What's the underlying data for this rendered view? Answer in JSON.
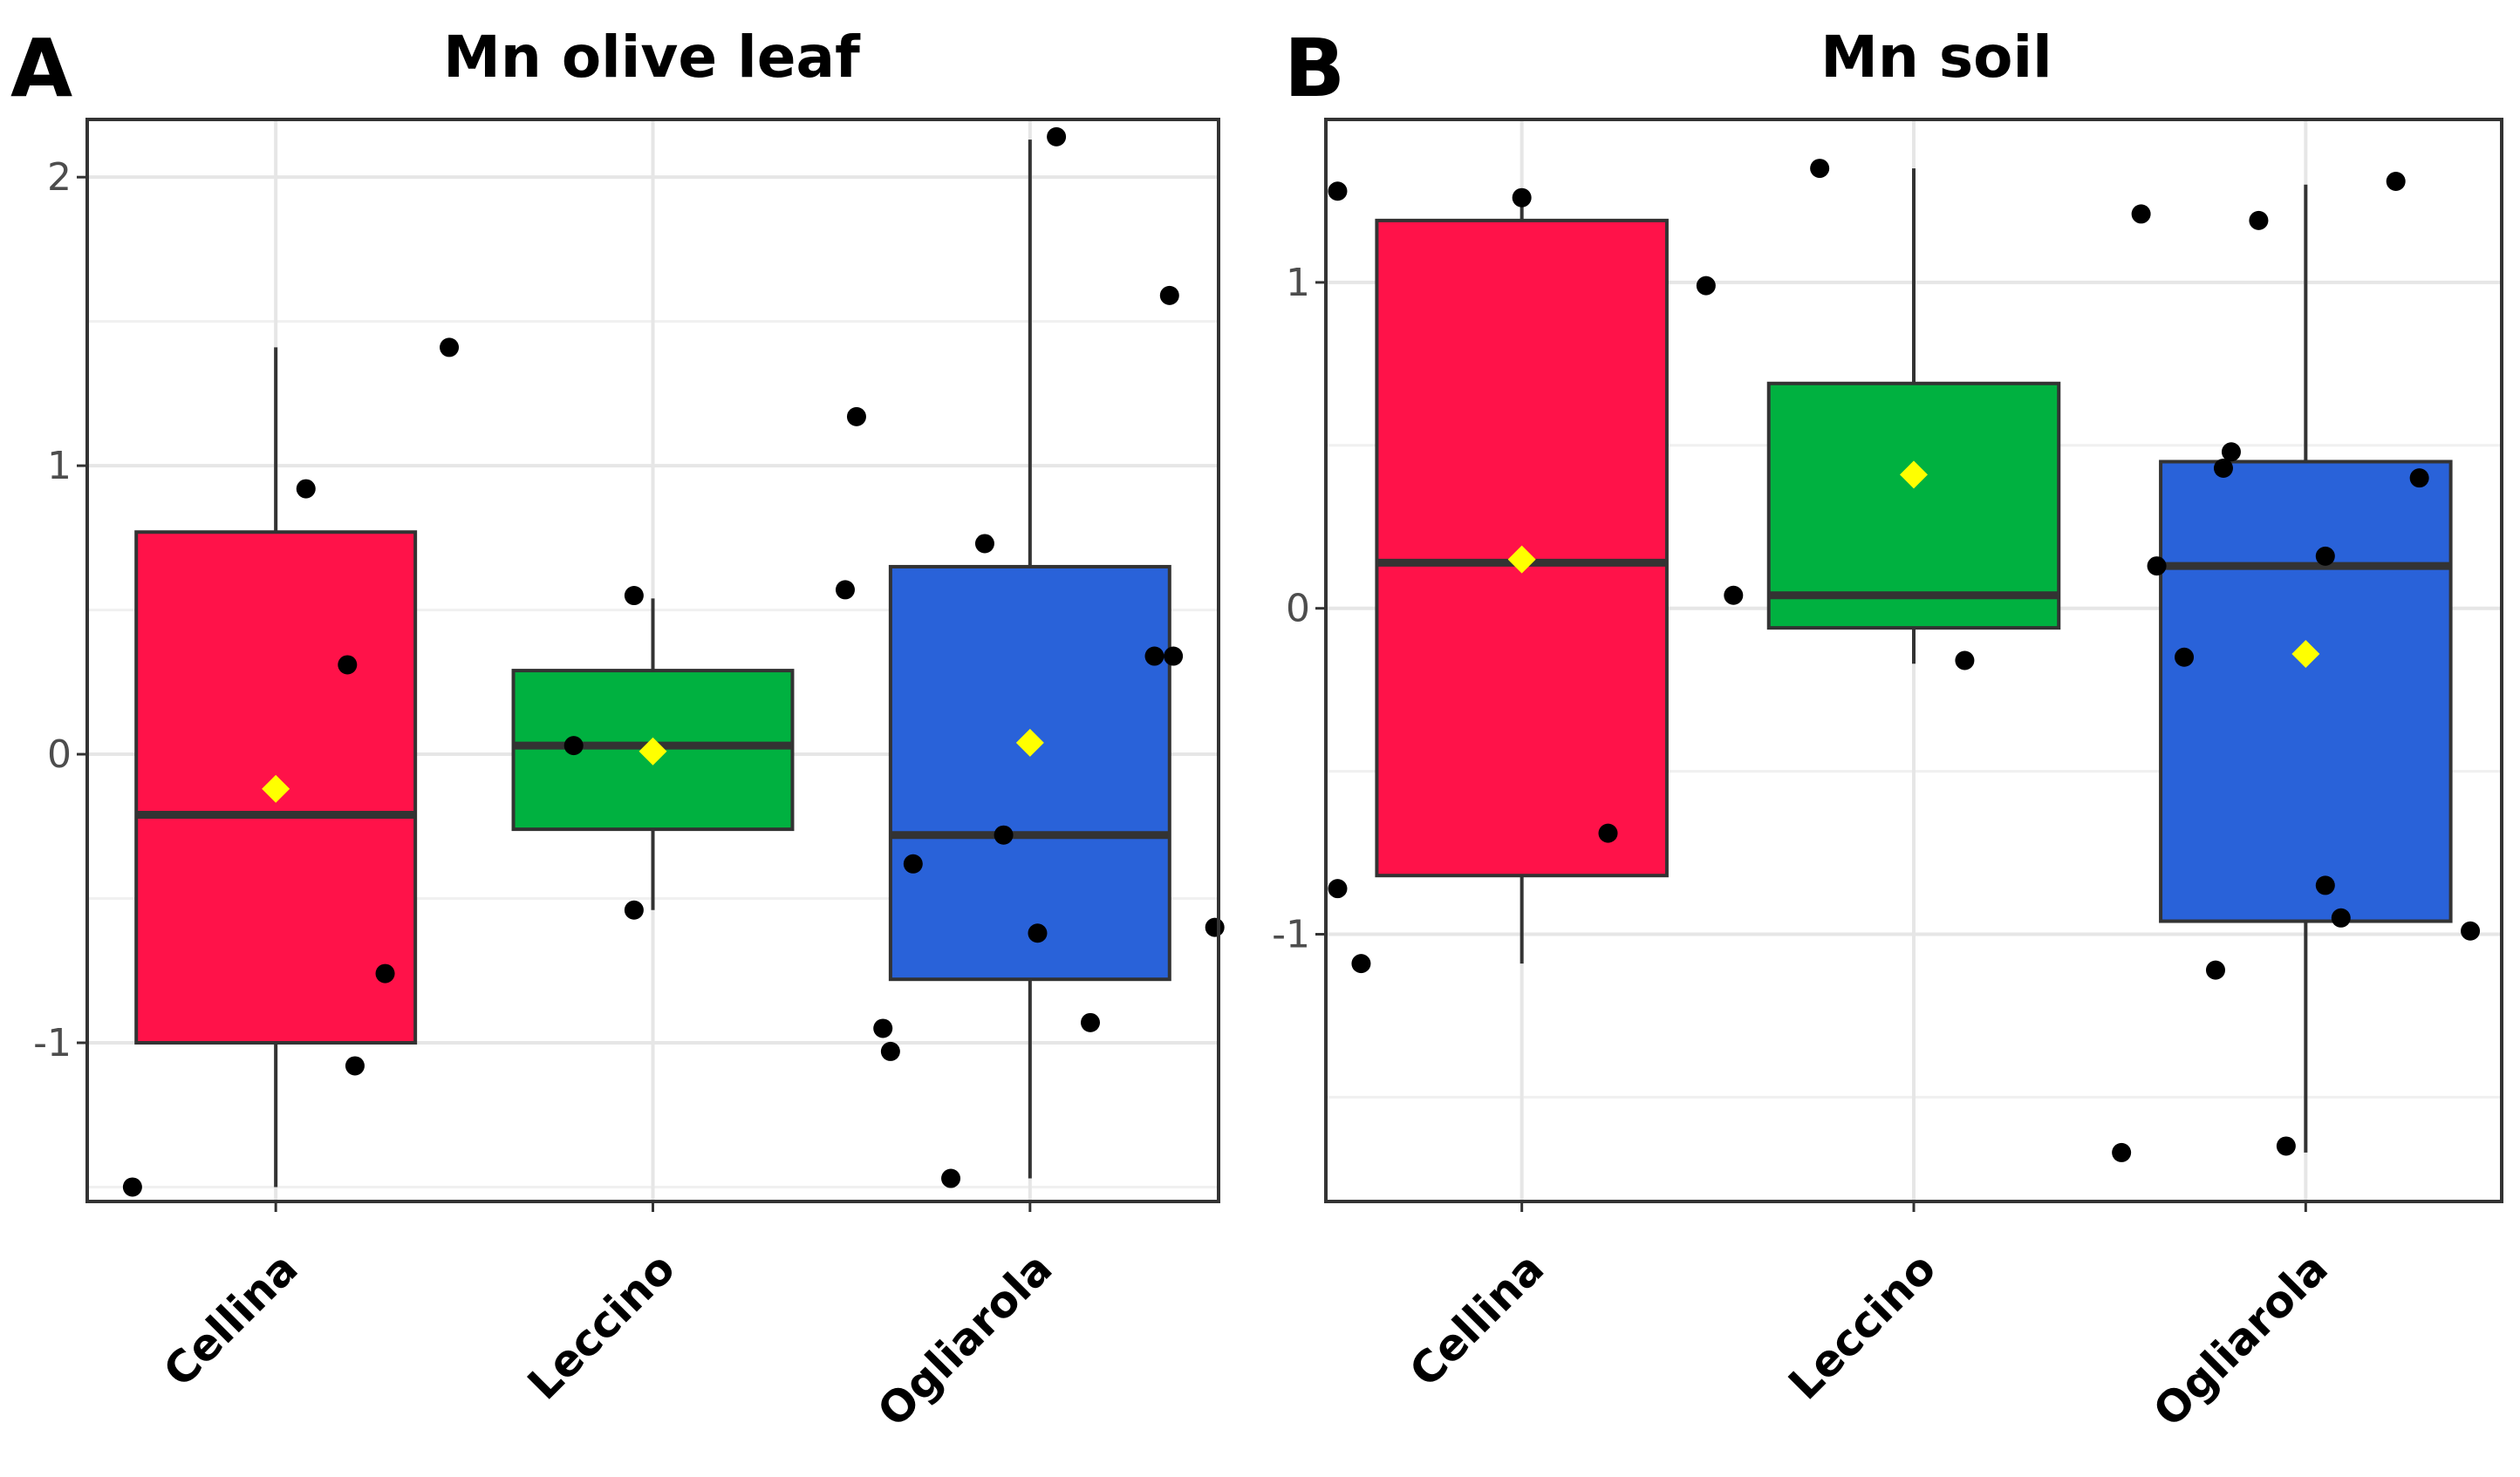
{
  "chart_data": [
    {
      "type": "box",
      "panel": "A",
      "title": "Mn olive leaf",
      "categories": [
        "Cellina",
        "Leccino",
        "Ogliarola"
      ],
      "ylim": [
        -1.55,
        2.2
      ],
      "yticks": [
        -1,
        0,
        1,
        2
      ],
      "ytick_labels": [
        "-1",
        "0",
        "1",
        "2"
      ],
      "grid": true,
      "groups": [
        {
          "name": "Cellina",
          "color": "#ff1249",
          "q1": -1.0,
          "median": -0.21,
          "q3": 0.77,
          "whisker_low": -1.5,
          "whisker_high": 1.41,
          "mean": -0.12,
          "points": [
            [
              -0.38,
              -1.5
            ],
            [
              0.08,
              0.92
            ],
            [
              0.19,
              0.31
            ],
            [
              0.29,
              -0.76
            ],
            [
              0.21,
              -1.08
            ],
            [
              0.46,
              1.41
            ]
          ]
        },
        {
          "name": "Leccino",
          "color": "#00b140",
          "q1": -0.26,
          "median": 0.03,
          "q3": 0.29,
          "whisker_low": -0.54,
          "whisker_high": 0.54,
          "mean": 0.01,
          "points": [
            [
              -0.21,
              0.03
            ],
            [
              -0.05,
              0.55
            ],
            [
              -0.05,
              -0.54
            ]
          ]
        },
        {
          "name": "Ogliarola",
          "color": "#2962d9",
          "q1": -0.78,
          "median": -0.28,
          "q3": 0.65,
          "whisker_low": -1.47,
          "whisker_high": 2.13,
          "mean": 0.04,
          "points": [
            [
              0.07,
              2.14
            ],
            [
              0.37,
              1.59
            ],
            [
              -0.46,
              1.17
            ],
            [
              -0.49,
              0.57
            ],
            [
              -0.12,
              0.73
            ],
            [
              0.33,
              0.34
            ],
            [
              0.38,
              0.34
            ],
            [
              -0.31,
              -0.38
            ],
            [
              -0.07,
              -0.28
            ],
            [
              0.02,
              -0.62
            ],
            [
              0.49,
              -0.6
            ],
            [
              -0.39,
              -0.95
            ],
            [
              -0.37,
              -1.03
            ],
            [
              0.16,
              -0.93
            ],
            [
              -0.21,
              -1.47
            ]
          ]
        }
      ]
    },
    {
      "type": "box",
      "panel": "B",
      "title": "Mn soil",
      "categories": [
        "Cellina",
        "Leccino",
        "Ogliarola"
      ],
      "ylim": [
        -1.82,
        1.5
      ],
      "yticks": [
        -1,
        0,
        1
      ],
      "ytick_labels": [
        "-1",
        "0",
        "1"
      ],
      "grid": true,
      "groups": [
        {
          "name": "Cellina",
          "color": "#ff1249",
          "q1": -0.82,
          "median": 0.14,
          "q3": 1.19,
          "whisker_low": -1.09,
          "whisker_high": 1.26,
          "mean": 0.15,
          "points": [
            [
              -0.47,
              1.28
            ],
            [
              0.0,
              1.26
            ],
            [
              0.47,
              0.99
            ],
            [
              -0.47,
              -0.86
            ],
            [
              -0.41,
              -1.09
            ],
            [
              0.22,
              -0.69
            ]
          ]
        },
        {
          "name": "Leccino",
          "color": "#00b140",
          "q1": -0.06,
          "median": 0.04,
          "q3": 0.69,
          "whisker_low": -0.17,
          "whisker_high": 1.35,
          "mean": 0.41,
          "points": [
            [
              -0.24,
              1.35
            ],
            [
              -0.46,
              0.04
            ],
            [
              0.13,
              -0.16
            ]
          ]
        },
        {
          "name": "Ogliarola",
          "color": "#2962d9",
          "q1": -0.96,
          "median": 0.13,
          "q3": 0.45,
          "whisker_low": -1.67,
          "whisker_high": 1.3,
          "mean": -0.14,
          "points": [
            [
              -0.42,
              1.21
            ],
            [
              -0.12,
              1.19
            ],
            [
              0.23,
              1.31
            ],
            [
              -0.19,
              0.48
            ],
            [
              -0.21,
              0.43
            ],
            [
              0.29,
              0.4
            ],
            [
              -0.38,
              0.13
            ],
            [
              0.05,
              0.16
            ],
            [
              -0.31,
              -0.15
            ],
            [
              0.05,
              -0.85
            ],
            [
              0.09,
              -0.95
            ],
            [
              0.42,
              -0.99
            ],
            [
              -0.23,
              -1.11
            ],
            [
              -0.47,
              -1.67
            ],
            [
              -0.05,
              -1.65
            ]
          ]
        }
      ]
    }
  ]
}
